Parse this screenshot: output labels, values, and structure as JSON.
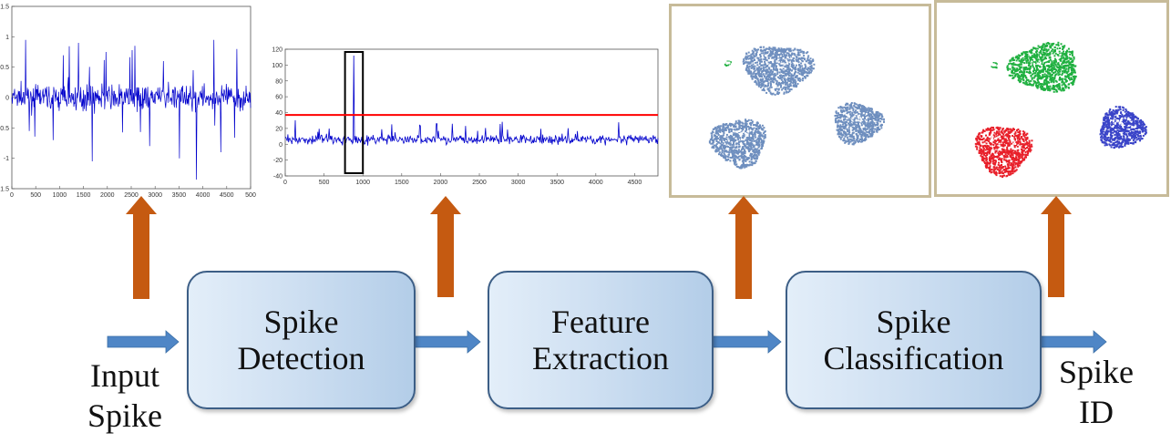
{
  "labels": {
    "input": [
      "Input",
      "Spike"
    ],
    "output": [
      "Spike",
      "ID"
    ]
  },
  "stages": [
    {
      "lines": [
        "Spike",
        "Detection"
      ]
    },
    {
      "lines": [
        "Feature",
        "Extraction"
      ]
    },
    {
      "lines": [
        "Spike",
        "Classification"
      ]
    }
  ],
  "colors": {
    "flow_arrow": "#4f86c6",
    "up_arrow": "#c55a11",
    "signal": "#0000cc",
    "threshold": "#ff0000",
    "cluster_default": "#6f8fbf",
    "cluster_green": "#20b040",
    "cluster_red": "#e8202a",
    "cluster_blue": "#3a44c8"
  },
  "chart_data": [
    {
      "type": "line",
      "x_ticks": [
        "0",
        "500",
        "1000",
        "1500",
        "2000",
        "2500",
        "3000",
        "3500",
        "4000",
        "4500",
        "500"
      ],
      "y_ticks": [
        "1.5",
        "1",
        "0.5",
        "0",
        "-0.5",
        "-1",
        "-1.5"
      ],
      "xlim": [
        0,
        5000
      ],
      "ylim": [
        -1.5,
        1.5
      ]
    },
    {
      "type": "line",
      "x_ticks": [
        "0",
        "500",
        "1000",
        "1500",
        "2000",
        "2500",
        "3000",
        "3500",
        "4000",
        "4500"
      ],
      "y_ticks": [
        "120",
        "100",
        "80",
        "60",
        "40",
        "20",
        "0",
        "-20",
        "-40"
      ],
      "xlim": [
        0,
        4800
      ],
      "ylim": [
        -40,
        120
      ],
      "threshold": 37,
      "highlight_window": [
        770,
        1000
      ]
    },
    {
      "type": "scatter",
      "clusters": [
        "cluster_default",
        "cluster_default",
        "cluster_default",
        "cluster_default"
      ]
    },
    {
      "type": "scatter",
      "clusters": [
        "cluster_green",
        "cluster_red",
        "cluster_blue",
        "cluster_green"
      ]
    }
  ]
}
